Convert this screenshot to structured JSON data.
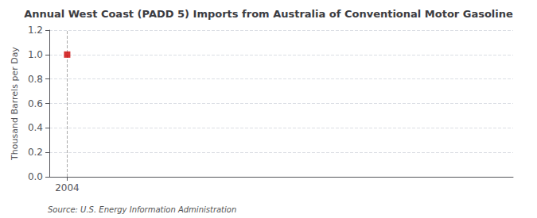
{
  "chart_data": {
    "type": "scatter",
    "title": "Annual West Coast (PADD 5) Imports from Australia of Conventional Motor Gasoline",
    "ylabel": "Thousand Barrels per Day",
    "annotation": "Source: U.S. Energy Information Administration",
    "x": [
      2004
    ],
    "values": [
      1.0
    ],
    "color": "#CC0000",
    "marker": "square",
    "xlim": [
      2003.4,
      2019.0
    ],
    "ylim": [
      0.0,
      1.2
    ],
    "xticks": [
      2004
    ],
    "yticks": [
      {
        "value": 0.0,
        "label": "0.0"
      },
      0.2,
      0.4,
      0.6,
      0.8,
      {
        "value": 1.0,
        "label": "1.0"
      },
      1.2
    ],
    "grid": true,
    "vline_x": 2004
  }
}
